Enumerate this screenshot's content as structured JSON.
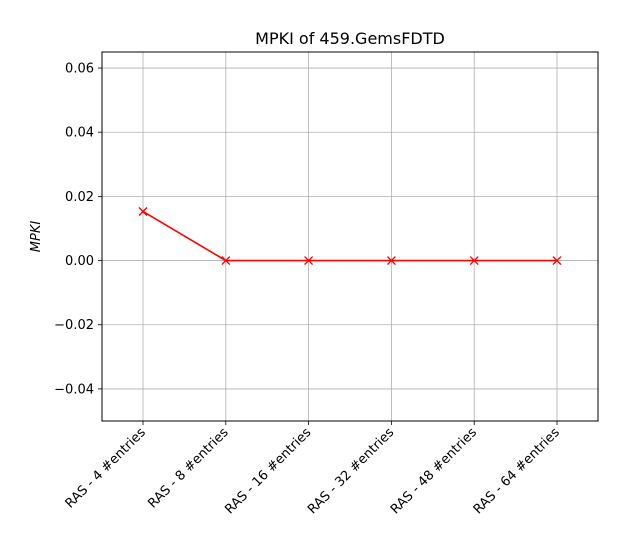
{
  "chart_data": {
    "type": "line",
    "title": "MPKI of 459.GemsFDTD",
    "xlabel": "",
    "ylabel": "MPKI",
    "categories": [
      "RAS - 4 #entries",
      "RAS - 8 #entries",
      "RAS - 16 #entries",
      "RAS - 32 #entries",
      "RAS - 48 #entries",
      "RAS - 64 #entries"
    ],
    "series": [
      {
        "values": [
          0.0153,
          0.0,
          0.0,
          0.0,
          0.0,
          0.0
        ],
        "color": "#ff0000",
        "marker": "x"
      }
    ],
    "ylim": [
      -0.05,
      0.065
    ],
    "yticks": [
      -0.04,
      -0.02,
      0.0,
      0.02,
      0.04,
      0.06
    ],
    "ytick_labels": [
      "−0.04",
      "−0.02",
      "0.00",
      "0.02",
      "0.04",
      "0.06"
    ],
    "grid": true,
    "xtick_rotation": 45
  }
}
